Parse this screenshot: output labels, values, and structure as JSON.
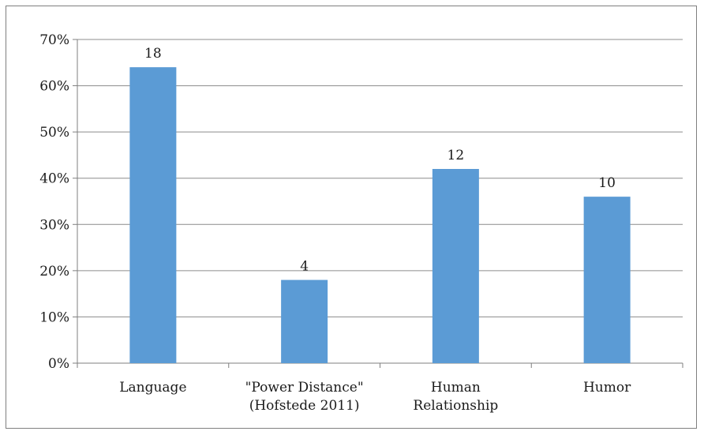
{
  "chart_data": {
    "type": "bar",
    "categories": [
      [
        "Language"
      ],
      [
        "\"Power Distance\"",
        "(Hofstede 2011)"
      ],
      [
        "Human",
        "Relationship"
      ],
      [
        "Humor"
      ]
    ],
    "values": [
      64,
      18,
      42,
      36
    ],
    "data_labels": [
      "18",
      "4",
      "12",
      "10"
    ],
    "ylim": [
      0,
      70
    ],
    "yticks": [
      0,
      10,
      20,
      30,
      40,
      50,
      60,
      70
    ],
    "ytick_labels": [
      "0%",
      "10%",
      "20%",
      "30%",
      "40%",
      "50%",
      "60%",
      "70%"
    ],
    "grid": true,
    "bar_color": "#5b9bd5",
    "title": "",
    "xlabel": "",
    "ylabel": ""
  }
}
